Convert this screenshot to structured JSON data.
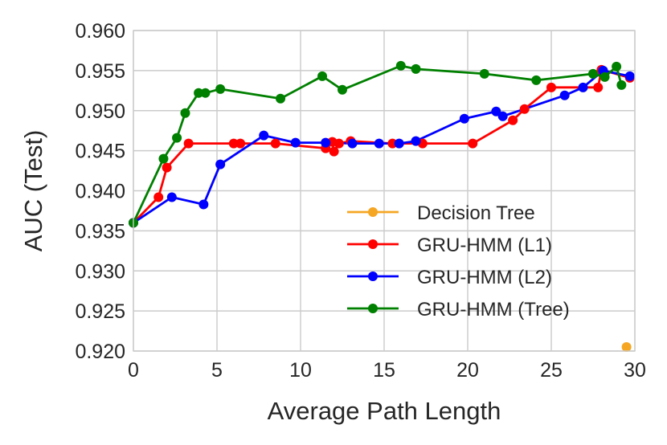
{
  "chart_data": {
    "type": "line",
    "title": "",
    "xlabel": "Average Path Length",
    "ylabel": "AUC (Test)",
    "xlim": [
      0,
      30
    ],
    "ylim": [
      0.92,
      0.96
    ],
    "x_ticks": [
      0,
      5,
      10,
      15,
      20,
      25,
      30
    ],
    "x_tick_labels": [
      "0",
      "5",
      "10",
      "15",
      "20",
      "25",
      "30"
    ],
    "y_ticks": [
      0.92,
      0.925,
      0.93,
      0.935,
      0.94,
      0.945,
      0.95,
      0.955,
      0.96
    ],
    "y_tick_labels": [
      "0.920",
      "0.925",
      "0.930",
      "0.935",
      "0.940",
      "0.945",
      "0.950",
      "0.955",
      "0.960"
    ],
    "grid": true,
    "legend_position": "lower-right",
    "series": [
      {
        "name": "Decision Tree",
        "color": "#f5a623",
        "points": [
          [
            29.5,
            0.9205
          ]
        ]
      },
      {
        "name": "GRU-HMM (L1)",
        "color": "#ff0000",
        "points": [
          [
            0.0,
            0.936
          ],
          [
            1.5,
            0.9392
          ],
          [
            2.0,
            0.9429
          ],
          [
            3.3,
            0.9459
          ],
          [
            6.0,
            0.9459
          ],
          [
            6.4,
            0.9459
          ],
          [
            8.5,
            0.9459
          ],
          [
            11.5,
            0.9453
          ],
          [
            11.9,
            0.9461
          ],
          [
            12.0,
            0.9449
          ],
          [
            12.3,
            0.9459
          ],
          [
            13.0,
            0.9462
          ],
          [
            15.5,
            0.9459
          ],
          [
            17.3,
            0.9459
          ],
          [
            20.3,
            0.9459
          ],
          [
            22.7,
            0.9488
          ],
          [
            23.4,
            0.9502
          ],
          [
            25.0,
            0.9529
          ],
          [
            27.8,
            0.9529
          ],
          [
            28.0,
            0.9551
          ],
          [
            29.7,
            0.9541
          ]
        ]
      },
      {
        "name": "GRU-HMM (L2)",
        "color": "#0000ff",
        "points": [
          [
            0.0,
            0.936
          ],
          [
            2.3,
            0.9392
          ],
          [
            4.2,
            0.9383
          ],
          [
            5.2,
            0.9433
          ],
          [
            7.8,
            0.9469
          ],
          [
            9.7,
            0.946
          ],
          [
            11.5,
            0.946
          ],
          [
            13.1,
            0.9459
          ],
          [
            14.7,
            0.9459
          ],
          [
            15.9,
            0.9459
          ],
          [
            16.9,
            0.9462
          ],
          [
            19.8,
            0.949
          ],
          [
            21.7,
            0.9499
          ],
          [
            22.1,
            0.9493
          ],
          [
            25.8,
            0.9519
          ],
          [
            26.9,
            0.9529
          ],
          [
            28.1,
            0.955
          ],
          [
            29.7,
            0.9543
          ]
        ]
      },
      {
        "name": "GRU-HMM (Tree)",
        "color": "#008000",
        "points": [
          [
            0.0,
            0.936
          ],
          [
            1.8,
            0.944
          ],
          [
            2.6,
            0.9466
          ],
          [
            3.1,
            0.9497
          ],
          [
            3.9,
            0.9522
          ],
          [
            4.3,
            0.9522
          ],
          [
            5.2,
            0.9527
          ],
          [
            8.8,
            0.9515
          ],
          [
            11.3,
            0.9543
          ],
          [
            12.5,
            0.9526
          ],
          [
            16.0,
            0.9556
          ],
          [
            16.9,
            0.9552
          ],
          [
            21.0,
            0.9546
          ],
          [
            24.1,
            0.9538
          ],
          [
            27.5,
            0.9546
          ],
          [
            28.2,
            0.9542
          ],
          [
            28.9,
            0.9555
          ],
          [
            29.2,
            0.9532
          ]
        ]
      }
    ]
  }
}
